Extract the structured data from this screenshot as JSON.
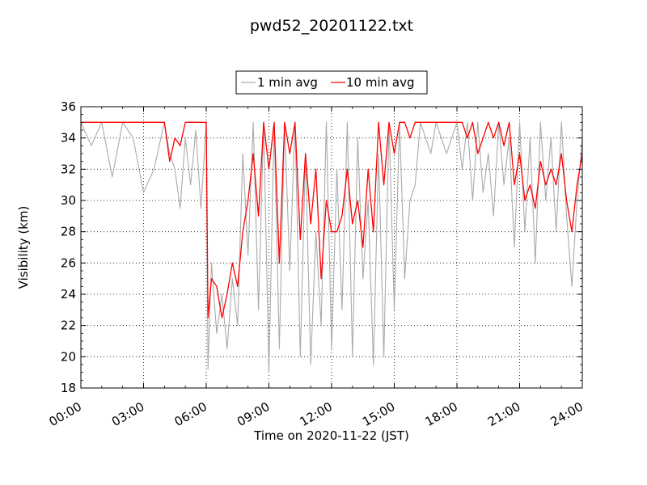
{
  "chart_data": {
    "type": "line",
    "title": "pwd52_20201122.txt",
    "xlabel": "Time on 2020-11-22 (JST)",
    "ylabel": "Visibility (km)",
    "xlim": [
      "00:00",
      "24:00"
    ],
    "ylim": [
      18,
      36
    ],
    "x_ticks": [
      "00:00",
      "03:00",
      "06:00",
      "09:00",
      "12:00",
      "15:00",
      "18:00",
      "21:00",
      "24:00"
    ],
    "y_ticks": [
      18,
      20,
      22,
      24,
      26,
      28,
      30,
      32,
      34,
      36
    ],
    "grid": true,
    "legend_placement": "top-center, above plot",
    "x_time": [
      "00:00",
      "00:30",
      "01:00",
      "01:30",
      "02:00",
      "02:30",
      "03:00",
      "03:30",
      "04:00",
      "04:15",
      "04:30",
      "04:45",
      "05:00",
      "05:15",
      "05:30",
      "05:45",
      "06:00",
      "06:05",
      "06:15",
      "06:30",
      "06:45",
      "07:00",
      "07:15",
      "07:30",
      "07:45",
      "08:00",
      "08:15",
      "08:30",
      "08:45",
      "09:00",
      "09:15",
      "09:30",
      "09:45",
      "10:00",
      "10:15",
      "10:30",
      "10:45",
      "11:00",
      "11:15",
      "11:30",
      "11:45",
      "12:00",
      "12:15",
      "12:30",
      "12:45",
      "13:00",
      "13:15",
      "13:30",
      "13:45",
      "14:00",
      "14:15",
      "14:30",
      "14:45",
      "15:00",
      "15:15",
      "15:30",
      "15:45",
      "16:00",
      "16:15",
      "16:30",
      "16:45",
      "17:00",
      "17:30",
      "18:00",
      "18:15",
      "18:30",
      "18:45",
      "19:00",
      "19:15",
      "19:30",
      "19:45",
      "20:00",
      "20:15",
      "20:30",
      "20:45",
      "21:00",
      "21:15",
      "21:30",
      "21:45",
      "22:00",
      "22:15",
      "22:30",
      "22:45",
      "23:00",
      "23:15",
      "23:30",
      "23:45",
      "24:00"
    ],
    "series": [
      {
        "name": "1 min avg",
        "color": "#aaaaaa",
        "values": [
          35,
          33.5,
          35,
          31.5,
          35,
          34,
          30.5,
          32,
          35,
          33,
          32,
          29.5,
          34,
          31,
          34.5,
          29.5,
          35,
          19.2,
          26,
          21.5,
          24,
          20.5,
          25,
          22,
          33,
          26.5,
          35,
          23,
          35,
          19,
          35,
          20.5,
          35,
          25.5,
          35,
          20,
          33,
          19.5,
          28,
          22,
          35,
          20.5,
          32,
          23,
          35,
          20,
          34,
          25,
          30,
          19.5,
          33,
          20,
          35,
          23,
          35,
          25,
          30,
          31,
          35,
          34,
          33,
          35,
          33,
          35,
          32,
          35,
          30,
          35,
          30.5,
          33,
          29,
          35,
          31,
          34,
          27,
          35,
          28,
          34,
          26,
          35,
          30,
          34,
          28,
          35,
          29,
          24.5,
          30,
          34
        ]
      },
      {
        "name": "10 min avg",
        "color": "#ff0000",
        "values": [
          35,
          35,
          35,
          35,
          35,
          35,
          35,
          35,
          35,
          32.5,
          34,
          33.5,
          35,
          35,
          35,
          35,
          35,
          22.5,
          25,
          24.5,
          22.5,
          24,
          26,
          24.5,
          28,
          30,
          33,
          29,
          35,
          32,
          35,
          26,
          35,
          33,
          35,
          27.5,
          33,
          28.5,
          32,
          25,
          30,
          28,
          28,
          29,
          32,
          28.5,
          30,
          27,
          32,
          28,
          35,
          31,
          35,
          33,
          35,
          35,
          34,
          35,
          35,
          35,
          35,
          35,
          35,
          35,
          35,
          34,
          35,
          33,
          34,
          35,
          34,
          35,
          33.5,
          35,
          31,
          33,
          30,
          31,
          29.5,
          32.5,
          31,
          32,
          31,
          33,
          30,
          28,
          31,
          33
        ]
      }
    ]
  }
}
